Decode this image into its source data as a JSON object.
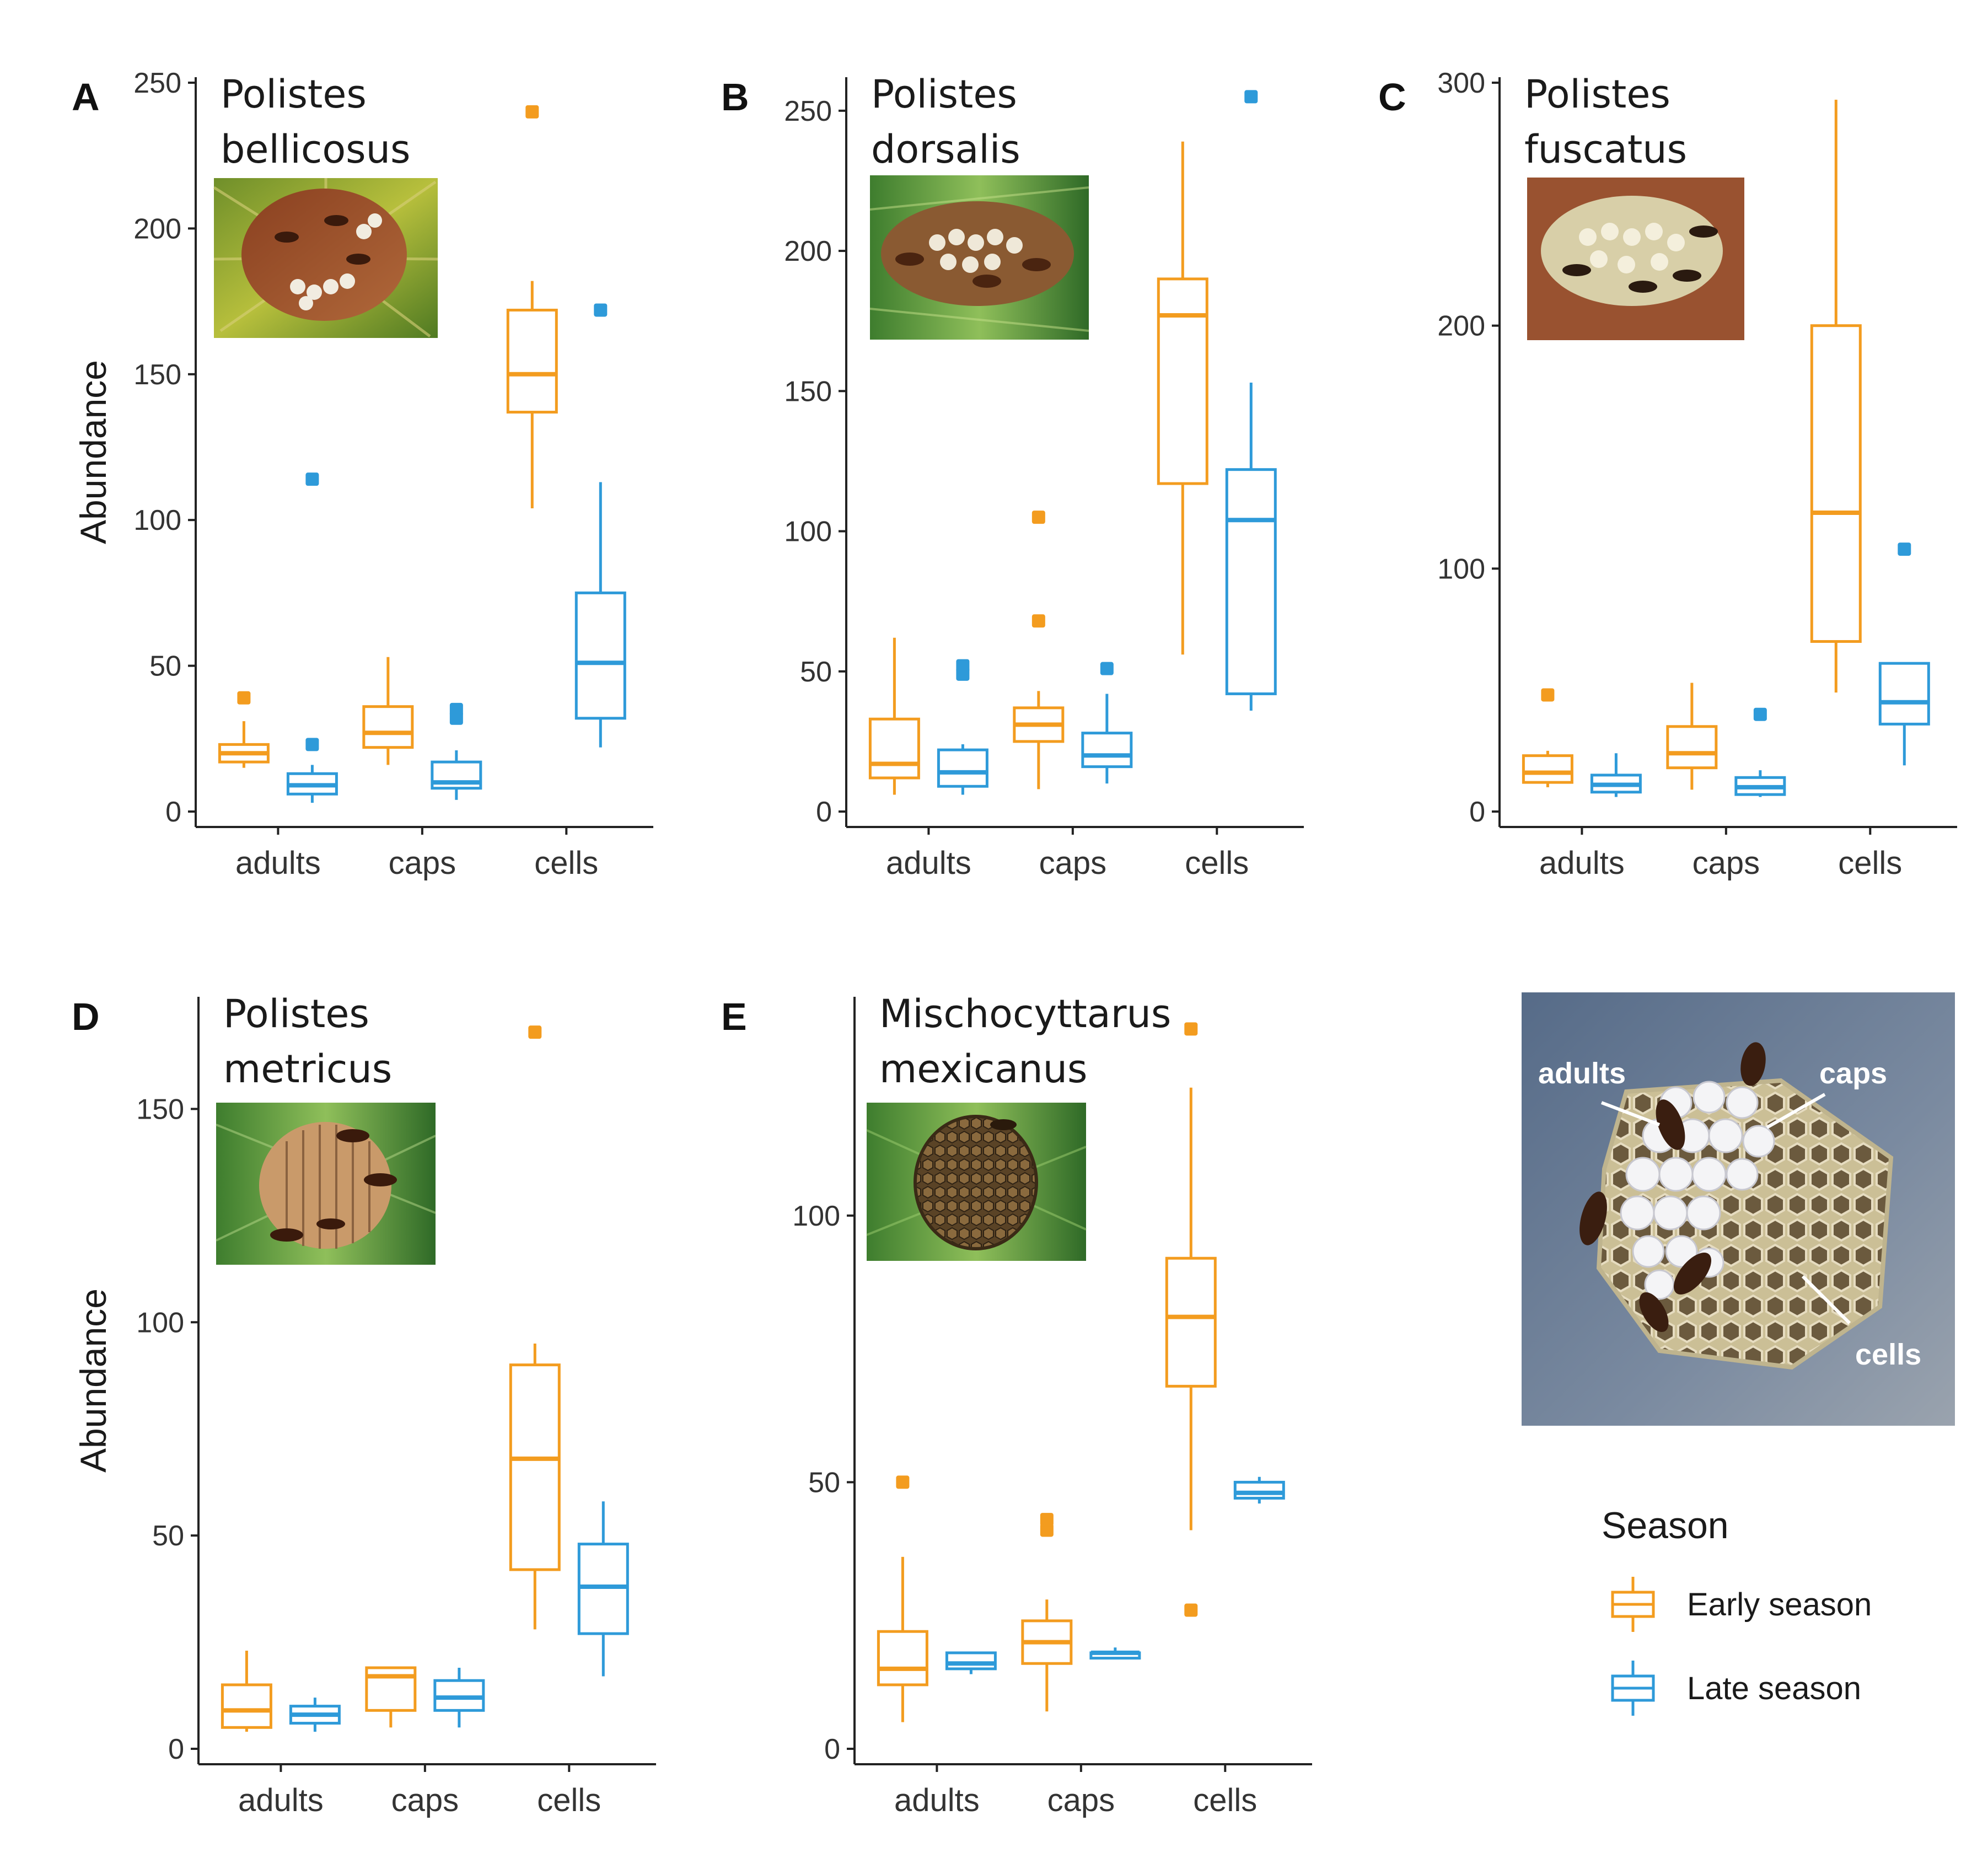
{
  "figure": {
    "ylabel": "Abundance",
    "categories": [
      "adults",
      "caps",
      "cells"
    ],
    "legend": {
      "title": "Season",
      "items": [
        {
          "label": "Early season",
          "color": "#F39C1F"
        },
        {
          "label": "Late season",
          "color": "#2E9AD9"
        }
      ]
    },
    "nest_diagram": {
      "labels": [
        "adults",
        "caps",
        "cells"
      ]
    }
  },
  "chart_data": [
    {
      "type": "box",
      "panel": "A",
      "title_lines": [
        "Polistes",
        "bellicosus"
      ],
      "categories": [
        "adults",
        "caps",
        "cells"
      ],
      "ylim": [
        0,
        250
      ],
      "yticks": [
        0,
        50,
        100,
        150,
        200,
        250
      ],
      "series": [
        {
          "name": "Early season",
          "boxes": [
            {
              "min": 15,
              "q1": 17,
              "median": 20,
              "q3": 23,
              "max": 31,
              "outliers": [
                39
              ]
            },
            {
              "min": 16,
              "q1": 22,
              "median": 27,
              "q3": 36,
              "max": 53,
              "outliers": []
            },
            {
              "min": 104,
              "q1": 137,
              "median": 150,
              "q3": 172,
              "max": 182,
              "outliers": [
                240
              ]
            }
          ]
        },
        {
          "name": "Late season",
          "boxes": [
            {
              "min": 3,
              "q1": 6,
              "median": 9,
              "q3": 13,
              "max": 16,
              "outliers": [
                23,
                114
              ]
            },
            {
              "min": 4,
              "q1": 8,
              "median": 10,
              "q3": 17,
              "max": 21,
              "outliers": [
                32,
                35
              ]
            },
            {
              "min": 22,
              "q1": 32,
              "median": 51,
              "q3": 75,
              "max": 113,
              "outliers": [
                172
              ]
            }
          ]
        }
      ]
    },
    {
      "type": "box",
      "panel": "B",
      "title_lines": [
        "Polistes",
        "dorsalis"
      ],
      "categories": [
        "adults",
        "caps",
        "cells"
      ],
      "ylim": [
        0,
        260
      ],
      "yticks": [
        0,
        50,
        100,
        150,
        200,
        250
      ],
      "series": [
        {
          "name": "Early season",
          "boxes": [
            {
              "min": 6,
              "q1": 12,
              "median": 17,
              "q3": 33,
              "max": 62,
              "outliers": []
            },
            {
              "min": 8,
              "q1": 25,
              "median": 31,
              "q3": 37,
              "max": 43,
              "outliers": [
                68,
                105
              ]
            },
            {
              "min": 56,
              "q1": 117,
              "median": 177,
              "q3": 190,
              "max": 239,
              "outliers": []
            }
          ]
        },
        {
          "name": "Late season",
          "boxes": [
            {
              "min": 6,
              "q1": 9,
              "median": 14,
              "q3": 22,
              "max": 24,
              "outliers": [
                49,
                52
              ]
            },
            {
              "min": 10,
              "q1": 16,
              "median": 20,
              "q3": 28,
              "max": 42,
              "outliers": [
                51
              ]
            },
            {
              "min": 36,
              "q1": 42,
              "median": 104,
              "q3": 122,
              "max": 153,
              "outliers": [
                255
              ]
            }
          ]
        }
      ]
    },
    {
      "type": "box",
      "panel": "C",
      "title_lines": [
        "Polistes",
        "fuscatus"
      ],
      "categories": [
        "adults",
        "caps",
        "cells"
      ],
      "ylim": [
        0,
        300
      ],
      "yticks": [
        0,
        100,
        200,
        300
      ],
      "series": [
        {
          "name": "Early season",
          "boxes": [
            {
              "min": 10,
              "q1": 12,
              "median": 16,
              "q3": 23,
              "max": 25,
              "outliers": [
                48
              ]
            },
            {
              "min": 9,
              "q1": 18,
              "median": 24,
              "q3": 35,
              "max": 53,
              "outliers": []
            },
            {
              "min": 49,
              "q1": 70,
              "median": 123,
              "q3": 200,
              "max": 293,
              "outliers": []
            }
          ]
        },
        {
          "name": "Late season",
          "boxes": [
            {
              "min": 6,
              "q1": 8,
              "median": 11,
              "q3": 15,
              "max": 24,
              "outliers": []
            },
            {
              "min": 6,
              "q1": 7,
              "median": 10,
              "q3": 14,
              "max": 17,
              "outliers": [
                40
              ]
            },
            {
              "min": 19,
              "q1": 36,
              "median": 45,
              "q3": 61,
              "max": 61,
              "outliers": [
                108
              ]
            }
          ]
        }
      ]
    },
    {
      "type": "box",
      "panel": "D",
      "title_lines": [
        "Polistes",
        "metricus"
      ],
      "categories": [
        "adults",
        "caps",
        "cells"
      ],
      "ylim": [
        0,
        175
      ],
      "yticks": [
        0,
        50,
        100,
        150
      ],
      "series": [
        {
          "name": "Early season",
          "boxes": [
            {
              "min": 4,
              "q1": 5,
              "median": 9,
              "q3": 15,
              "max": 23,
              "outliers": []
            },
            {
              "min": 5,
              "q1": 9,
              "median": 17,
              "q3": 19,
              "max": 19,
              "outliers": []
            },
            {
              "min": 28,
              "q1": 42,
              "median": 68,
              "q3": 90,
              "max": 95,
              "outliers": [
                168
              ]
            }
          ]
        },
        {
          "name": "Late season",
          "boxes": [
            {
              "min": 4,
              "q1": 6,
              "median": 8,
              "q3": 10,
              "max": 12,
              "outliers": []
            },
            {
              "min": 5,
              "q1": 9,
              "median": 12,
              "q3": 16,
              "max": 19,
              "outliers": []
            },
            {
              "min": 17,
              "q1": 27,
              "median": 38,
              "q3": 48,
              "max": 58,
              "outliers": []
            }
          ]
        }
      ]
    },
    {
      "type": "box",
      "panel": "E",
      "title_lines": [
        "Mischocyttarus",
        "mexicanus"
      ],
      "categories": [
        "adults",
        "caps",
        "cells"
      ],
      "ylim": [
        0,
        140
      ],
      "yticks": [
        0,
        50,
        100
      ],
      "series": [
        {
          "name": "Early season",
          "boxes": [
            {
              "min": 5,
              "q1": 12,
              "median": 15,
              "q3": 22,
              "max": 36,
              "outliers": [
                50
              ]
            },
            {
              "min": 7,
              "q1": 16,
              "median": 20,
              "q3": 24,
              "max": 28,
              "outliers": [
                41,
                43
              ]
            },
            {
              "min": 41,
              "q1": 68,
              "median": 81,
              "q3": 92,
              "max": 124,
              "outliers": [
                26,
                135
              ]
            }
          ]
        },
        {
          "name": "Late season",
          "boxes": [
            {
              "min": 14,
              "q1": 15,
              "median": 16,
              "q3": 18,
              "max": 18,
              "outliers": []
            },
            {
              "min": 17,
              "q1": 17,
              "median": 18,
              "q3": 18,
              "max": 19,
              "outliers": []
            },
            {
              "min": 46,
              "q1": 47,
              "median": 48,
              "q3": 50,
              "max": 51,
              "outliers": []
            }
          ]
        }
      ]
    }
  ]
}
